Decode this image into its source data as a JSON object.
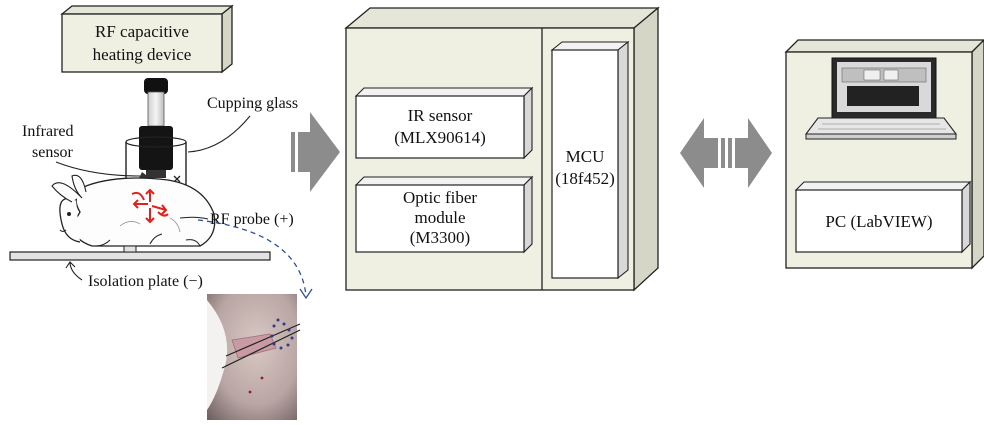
{
  "heater": {
    "line1": "RF capacitive",
    "line2": "heating device"
  },
  "labels": {
    "cupping_glass": "Cupping glass",
    "infrared_line1": "Infrared",
    "infrared_line2": "sensor",
    "rf_probe": "RF probe (+)",
    "isolation_plate": "Isolation plate (−)"
  },
  "controller": {
    "ir_line1": "IR sensor",
    "ir_line2": "(MLX90614)",
    "optic_line1": "Optic fiber",
    "optic_line2": "module",
    "optic_line3": "(M3300)",
    "mcu_line1": "MCU",
    "mcu_line2": "(18f452)"
  },
  "pc": {
    "label": "PC (LabVIEW)"
  },
  "colors": {
    "box_fill": "#efefe2",
    "box_side": "#d6d6c6",
    "arrow_gray": "#8c8c8c",
    "heat_red": "#e0221b",
    "probe_link_blue": "#2e4f9e",
    "pink_tissue": "#c89aa4"
  },
  "icons": {
    "heater": "heater-box-icon",
    "rabbit": "rabbit-icon",
    "laptop": "laptop-icon",
    "arrow_right": "right-arrow-icon",
    "arrow_double": "double-arrow-icon",
    "photo": "tissue-photo-icon"
  }
}
